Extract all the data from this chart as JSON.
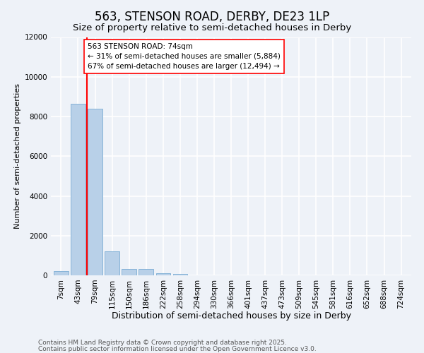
{
  "title1": "563, STENSON ROAD, DERBY, DE23 1LP",
  "title2": "Size of property relative to semi-detached houses in Derby",
  "xlabel": "Distribution of semi-detached houses by size in Derby",
  "ylabel": "Number of semi-detached properties",
  "categories": [
    "7sqm",
    "43sqm",
    "79sqm",
    "115sqm",
    "150sqm",
    "186sqm",
    "222sqm",
    "258sqm",
    "294sqm",
    "330sqm",
    "366sqm",
    "401sqm",
    "437sqm",
    "473sqm",
    "509sqm",
    "545sqm",
    "581sqm",
    "616sqm",
    "652sqm",
    "688sqm",
    "724sqm"
  ],
  "values": [
    230,
    8650,
    8380,
    1200,
    330,
    330,
    100,
    60,
    0,
    0,
    0,
    0,
    0,
    0,
    0,
    0,
    0,
    0,
    0,
    0,
    0
  ],
  "bar_color": "#b8d0e8",
  "bar_edge_color": "#7aacd4",
  "vline_x_index": 1.5,
  "vline_color": "red",
  "annotation_text": "563 STENSON ROAD: 74sqm\n← 31% of semi-detached houses are smaller (5,884)\n67% of semi-detached houses are larger (12,494) →",
  "annotation_box_color": "white",
  "annotation_box_edge_color": "red",
  "ylim": [
    0,
    12000
  ],
  "yticks": [
    0,
    2000,
    4000,
    6000,
    8000,
    10000,
    12000
  ],
  "bg_color": "#eef2f8",
  "grid_color": "white",
  "footnote1": "Contains HM Land Registry data © Crown copyright and database right 2025.",
  "footnote2": "Contains public sector information licensed under the Open Government Licence v3.0.",
  "title1_fontsize": 12,
  "title2_fontsize": 9.5,
  "xlabel_fontsize": 9,
  "ylabel_fontsize": 8,
  "tick_fontsize": 7.5,
  "footnote_fontsize": 6.5,
  "annot_fontsize": 7.5
}
